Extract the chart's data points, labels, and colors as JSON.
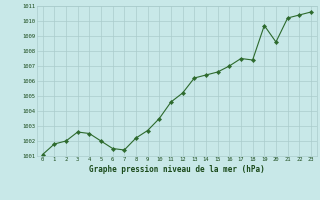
{
  "x": [
    0,
    1,
    2,
    3,
    4,
    5,
    6,
    7,
    8,
    9,
    10,
    11,
    12,
    13,
    14,
    15,
    16,
    17,
    18,
    19,
    20,
    21,
    22,
    23
  ],
  "y": [
    1001.1,
    1001.8,
    1002.0,
    1002.6,
    1002.5,
    1002.0,
    1001.5,
    1001.4,
    1002.2,
    1002.7,
    1003.5,
    1004.6,
    1005.2,
    1006.2,
    1006.4,
    1006.6,
    1007.0,
    1007.5,
    1007.4,
    1009.7,
    1008.6,
    1010.2,
    1010.4,
    1010.6
  ],
  "line_color": "#2d6a2d",
  "marker_color": "#2d6a2d",
  "bg_color": "#c8e8e8",
  "grid_color": "#aacccc",
  "axis_label_color": "#1a4a1a",
  "xlabel": "Graphe pression niveau de la mer (hPa)",
  "ylim": [
    1001,
    1011
  ],
  "xlim": [
    -0.5,
    23.5
  ],
  "yticks": [
    1001,
    1002,
    1003,
    1004,
    1005,
    1006,
    1007,
    1008,
    1009,
    1010,
    1011
  ],
  "xticks": [
    0,
    1,
    2,
    3,
    4,
    5,
    6,
    7,
    8,
    9,
    10,
    11,
    12,
    13,
    14,
    15,
    16,
    17,
    18,
    19,
    20,
    21,
    22,
    23
  ]
}
